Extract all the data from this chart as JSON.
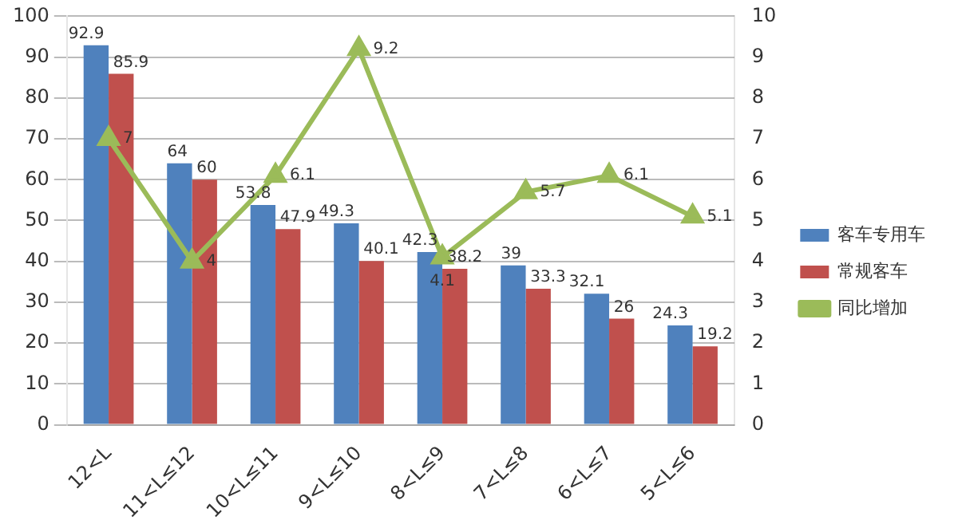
{
  "chart_data": {
    "type": "bar",
    "categories": [
      "12<L",
      "11<L≤12",
      "10<L≤11",
      "9<L≤10",
      "8<L≤9",
      "7<L≤8",
      "6<L≤7",
      "5<L≤6"
    ],
    "series": [
      {
        "name": "客车专用车",
        "color": "#4f81bd",
        "values": [
          92.9,
          64,
          53.8,
          49.3,
          42.3,
          39,
          32.1,
          24.3
        ]
      },
      {
        "name": "常规客车",
        "color": "#c0504d",
        "values": [
          85.9,
          60,
          47.9,
          40.1,
          38.2,
          33.3,
          26,
          19.2
        ]
      },
      {
        "name": "同比增加",
        "type": "line",
        "axis": "y2",
        "color": "#9bbb59",
        "marker": "triangle",
        "values": [
          7,
          4,
          6.1,
          9.2,
          4.1,
          5.7,
          6.1,
          5.1
        ]
      }
    ],
    "ylim": [
      0,
      100
    ],
    "yticks": [
      0,
      10,
      20,
      30,
      40,
      50,
      60,
      70,
      80,
      90,
      100
    ],
    "y2lim": [
      0,
      10
    ],
    "y2ticks": [
      0,
      1,
      2,
      3,
      4,
      5,
      6,
      7,
      8,
      9,
      10
    ],
    "grid": "y",
    "legend": "right",
    "data_labels": true
  }
}
